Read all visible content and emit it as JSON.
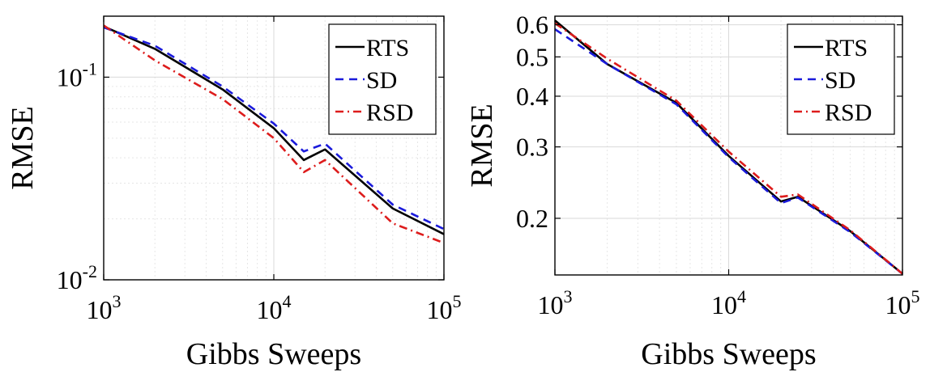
{
  "chart_data": [
    {
      "type": "line",
      "xlabel": "Gibbs Sweeps",
      "ylabel": "RMSE",
      "xscale": "log",
      "yscale": "log",
      "xlim": [
        1000,
        100000
      ],
      "ylim": [
        0.01,
        0.2
      ],
      "grid": true,
      "legend_position": "top-right",
      "x_ticks": [
        1000,
        10000,
        100000
      ],
      "x_tick_labels": [
        {
          "base": "10",
          "exp": "3"
        },
        {
          "base": "10",
          "exp": "4"
        },
        {
          "base": "10",
          "exp": "5"
        }
      ],
      "y_ticks": [
        0.01,
        0.1
      ],
      "y_tick_labels": [
        {
          "base": "10",
          "exp": "-2"
        },
        {
          "base": "10",
          "exp": "-1"
        }
      ],
      "series": [
        {
          "name": "RTS",
          "color": "#000000",
          "dash": "solid",
          "x": [
            1000,
            2000,
            5000,
            10000,
            15000,
            20000,
            50000,
            100000
          ],
          "y": [
            0.178,
            0.138,
            0.087,
            0.056,
            0.039,
            0.044,
            0.0225,
            0.0168
          ]
        },
        {
          "name": "SD",
          "color": "#1a1adb",
          "dash": "dashed",
          "x": [
            1000,
            2000,
            5000,
            10000,
            15000,
            20000,
            50000,
            100000
          ],
          "y": [
            0.176,
            0.143,
            0.09,
            0.059,
            0.043,
            0.047,
            0.0235,
            0.0178
          ]
        },
        {
          "name": "RSD",
          "color": "#dd1c1c",
          "dash": "dashdot",
          "x": [
            1000,
            2000,
            5000,
            10000,
            15000,
            20000,
            50000,
            100000
          ],
          "y": [
            0.18,
            0.121,
            0.078,
            0.05,
            0.034,
            0.039,
            0.019,
            0.0152
          ]
        }
      ]
    },
    {
      "type": "line",
      "xlabel": "Gibbs Sweeps",
      "ylabel": "RMSE",
      "xscale": "log",
      "yscale": "log",
      "xlim": [
        1000,
        100000
      ],
      "ylim": [
        0.145,
        0.63
      ],
      "grid": true,
      "legend_position": "top-right",
      "x_ticks": [
        1000,
        10000,
        100000
      ],
      "x_tick_labels": [
        {
          "base": "10",
          "exp": "3"
        },
        {
          "base": "10",
          "exp": "4"
        },
        {
          "base": "10",
          "exp": "5"
        }
      ],
      "y_ticks": [
        0.2,
        0.3,
        0.4,
        0.5,
        0.6
      ],
      "y_tick_labels": [
        {
          "base": "0.2",
          "exp": ""
        },
        {
          "base": "0.3",
          "exp": ""
        },
        {
          "base": "0.4",
          "exp": ""
        },
        {
          "base": "0.5",
          "exp": ""
        },
        {
          "base": "0.6",
          "exp": ""
        }
      ],
      "series": [
        {
          "name": "RTS",
          "color": "#000000",
          "dash": "solid",
          "x": [
            1000,
            2000,
            5000,
            10000,
            20000,
            25000,
            50000,
            100000
          ],
          "y": [
            0.615,
            0.48,
            0.385,
            0.285,
            0.22,
            0.226,
            0.186,
            0.146
          ]
        },
        {
          "name": "SD",
          "color": "#1a1adb",
          "dash": "dashed",
          "x": [
            1000,
            2000,
            5000,
            10000,
            20000,
            25000,
            50000,
            100000
          ],
          "y": [
            0.585,
            0.48,
            0.382,
            0.283,
            0.218,
            0.225,
            0.185,
            0.146
          ]
        },
        {
          "name": "RSD",
          "color": "#dd1c1c",
          "dash": "dashdot",
          "x": [
            1000,
            2000,
            5000,
            10000,
            20000,
            25000,
            50000,
            100000
          ],
          "y": [
            0.605,
            0.495,
            0.39,
            0.292,
            0.226,
            0.229,
            0.187,
            0.146
          ]
        }
      ]
    }
  ]
}
